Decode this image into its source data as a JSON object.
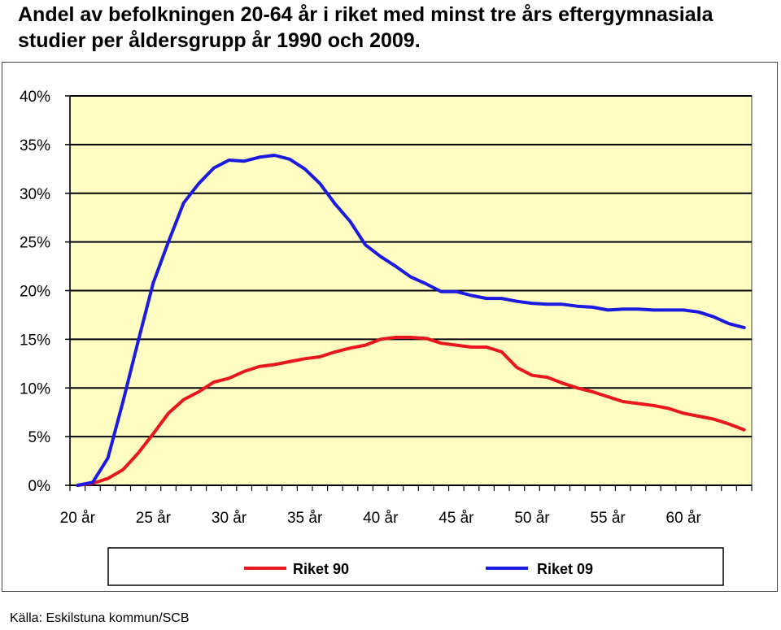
{
  "chart_data": {
    "type": "line",
    "title": "Andel av befolkningen 20-64 år i riket med minst tre års eftergymnasiala studier per åldersgrupp år 1990 och 2009.",
    "source": "Källa: Eskilstuna kommun/SCB",
    "x": [
      20,
      21,
      22,
      23,
      24,
      25,
      26,
      27,
      28,
      29,
      30,
      31,
      32,
      33,
      34,
      35,
      36,
      37,
      38,
      39,
      40,
      41,
      42,
      43,
      44,
      45,
      46,
      47,
      48,
      49,
      50,
      51,
      52,
      53,
      54,
      55,
      56,
      57,
      58,
      59,
      60,
      61,
      62,
      63,
      64
    ],
    "x_tick_labels": [
      {
        "value": 20,
        "label": "20 år"
      },
      {
        "value": 25,
        "label": "25 år"
      },
      {
        "value": 30,
        "label": "30 år"
      },
      {
        "value": 35,
        "label": "35 år"
      },
      {
        "value": 40,
        "label": "40 år"
      },
      {
        "value": 45,
        "label": "45 år"
      },
      {
        "value": 50,
        "label": "50 år"
      },
      {
        "value": 55,
        "label": "55 år"
      },
      {
        "value": 60,
        "label": "60 år"
      }
    ],
    "y_ticks": [
      0,
      5,
      10,
      15,
      20,
      25,
      30,
      35,
      40
    ],
    "y_tick_labels": [
      "0%",
      "5%",
      "10%",
      "15%",
      "20%",
      "25%",
      "30%",
      "35%",
      "40%"
    ],
    "ylim": [
      0,
      40
    ],
    "xlim": [
      19.5,
      64.5
    ],
    "grid": "horizontal",
    "legend": "bottom",
    "series": [
      {
        "name": "Riket 90",
        "color": "#e8171c",
        "values": [
          0.0,
          0.2,
          0.7,
          1.6,
          3.3,
          5.3,
          7.4,
          8.8,
          9.6,
          10.6,
          11.0,
          11.7,
          12.2,
          12.4,
          12.7,
          13.0,
          13.2,
          13.7,
          14.1,
          14.4,
          15.0,
          15.2,
          15.2,
          15.1,
          14.6,
          14.4,
          14.2,
          14.2,
          13.7,
          12.1,
          11.3,
          11.1,
          10.5,
          10.0,
          9.6,
          9.1,
          8.6,
          8.4,
          8.2,
          7.9,
          7.4,
          7.1,
          6.8,
          6.3,
          5.7
        ]
      },
      {
        "name": "Riket 09",
        "color": "#1a1ae0",
        "values": [
          0.0,
          0.3,
          2.8,
          8.6,
          14.8,
          20.8,
          25.0,
          29.0,
          31.0,
          32.6,
          33.4,
          33.3,
          33.7,
          33.9,
          33.5,
          32.5,
          31.0,
          28.9,
          27.1,
          24.7,
          23.5,
          22.5,
          21.4,
          20.7,
          19.9,
          19.9,
          19.5,
          19.2,
          19.2,
          18.9,
          18.7,
          18.6,
          18.6,
          18.4,
          18.3,
          18.0,
          18.1,
          18.1,
          18.0,
          18.0,
          18.0,
          17.8,
          17.3,
          16.6,
          16.2
        ]
      }
    ]
  },
  "colors": {
    "plot_background": "#fefcc0",
    "gridline": "#000000"
  }
}
